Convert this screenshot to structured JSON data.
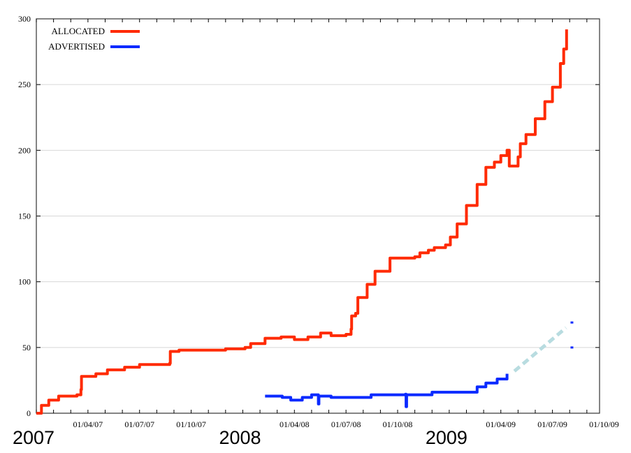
{
  "chart_data": {
    "type": "line",
    "title": "",
    "xlabel": "",
    "ylabel": "",
    "ylim": [
      0,
      300
    ],
    "xlim": [
      "2007-01-01",
      "2009-10-15"
    ],
    "grid": {
      "horizontal": true,
      "vertical": false
    },
    "legend_placement": "top-left",
    "y_ticks": [
      "0",
      "50",
      "100",
      "150",
      "200",
      "250",
      "300"
    ],
    "x_ticks": [
      {
        "date": "2007-04-01",
        "label": "01/04/07"
      },
      {
        "date": "2007-07-01",
        "label": "01/07/07"
      },
      {
        "date": "2007-10-01",
        "label": "01/10/07"
      },
      {
        "date": "2008-04-01",
        "label": "01/04/08"
      },
      {
        "date": "2008-07-01",
        "label": "01/07/08"
      },
      {
        "date": "2008-10-01",
        "label": "01/10/08"
      },
      {
        "date": "2009-04-01",
        "label": "01/04/09"
      },
      {
        "date": "2009-07-01",
        "label": "01/07/09"
      },
      {
        "date": "2009-10-01",
        "label": "01/10/09"
      }
    ],
    "year_labels": [
      {
        "date": "2007-01-01",
        "label": "2007"
      },
      {
        "date": "2008-01-01",
        "label": "2008"
      },
      {
        "date": "2009-01-01",
        "label": "2009"
      }
    ],
    "series": [
      {
        "name": "ALLOCATED",
        "color": "#ff2a00",
        "points": [
          [
            "2007-01-01",
            0
          ],
          [
            "2007-01-10",
            6
          ],
          [
            "2007-01-23",
            10
          ],
          [
            "2007-02-10",
            13
          ],
          [
            "2007-03-12",
            14
          ],
          [
            "2007-03-19",
            18
          ],
          [
            "2007-03-20",
            28
          ],
          [
            "2007-04-15",
            30
          ],
          [
            "2007-05-05",
            33
          ],
          [
            "2007-06-05",
            35
          ],
          [
            "2007-07-01",
            37
          ],
          [
            "2007-08-24",
            38
          ],
          [
            "2007-08-25",
            47
          ],
          [
            "2007-09-10",
            48
          ],
          [
            "2007-12-01",
            49
          ],
          [
            "2008-01-05",
            50
          ],
          [
            "2008-01-15",
            53
          ],
          [
            "2008-02-10",
            57
          ],
          [
            "2008-03-08",
            58
          ],
          [
            "2008-04-01",
            56
          ],
          [
            "2008-04-25",
            58
          ],
          [
            "2008-05-17",
            61
          ],
          [
            "2008-06-05",
            59
          ],
          [
            "2008-07-01",
            60
          ],
          [
            "2008-07-10",
            64
          ],
          [
            "2008-07-11",
            74
          ],
          [
            "2008-07-18",
            76
          ],
          [
            "2008-07-22",
            88
          ],
          [
            "2008-08-08",
            98
          ],
          [
            "2008-08-22",
            108
          ],
          [
            "2008-09-18",
            118
          ],
          [
            "2008-11-01",
            119
          ],
          [
            "2008-11-10",
            122
          ],
          [
            "2008-11-25",
            124
          ],
          [
            "2008-12-05",
            126
          ],
          [
            "2008-12-25",
            128
          ],
          [
            "2009-01-03",
            134
          ],
          [
            "2009-01-15",
            144
          ],
          [
            "2009-02-01",
            158
          ],
          [
            "2009-02-20",
            174
          ],
          [
            "2009-03-05",
            187
          ],
          [
            "2009-03-20",
            191
          ],
          [
            "2009-04-01",
            196
          ],
          [
            "2009-04-12",
            200
          ],
          [
            "2009-04-16",
            188
          ],
          [
            "2009-05-01",
            195
          ],
          [
            "2009-05-05",
            205
          ],
          [
            "2009-05-15",
            212
          ],
          [
            "2009-06-01",
            224
          ],
          [
            "2009-06-18",
            237
          ],
          [
            "2009-07-01",
            248
          ],
          [
            "2009-07-15",
            266
          ],
          [
            "2009-07-21",
            277
          ],
          [
            "2009-07-26",
            292
          ]
        ]
      },
      {
        "name": "ADVERTISED",
        "color": "#0a2aff",
        "points": [
          [
            "2008-02-10",
            13
          ],
          [
            "2008-03-10",
            12
          ],
          [
            "2008-03-25",
            10
          ],
          [
            "2008-04-15",
            12
          ],
          [
            "2008-05-01",
            14
          ],
          [
            "2008-05-12",
            14
          ],
          [
            "2008-05-13",
            7
          ],
          [
            "2008-05-14",
            13
          ],
          [
            "2008-06-05",
            12
          ],
          [
            "2008-07-15",
            12
          ],
          [
            "2008-08-15",
            14
          ],
          [
            "2008-10-15",
            14.5
          ],
          [
            "2008-10-16",
            5
          ],
          [
            "2008-10-17",
            14
          ],
          [
            "2008-12-01",
            16
          ],
          [
            "2009-01-25",
            16
          ],
          [
            "2009-02-20",
            20
          ],
          [
            "2009-03-05",
            23
          ],
          [
            "2009-03-25",
            26
          ],
          [
            "2009-04-12",
            30
          ]
        ]
      }
    ],
    "projection": {
      "color": "#b8dce0",
      "style": "dashed",
      "points": [
        [
          "2009-04-25",
          32
        ],
        [
          "2009-07-25",
          65
        ]
      ]
    },
    "isolated_points": [
      {
        "date": "2009-08-05",
        "value": 69,
        "color": "#0a2aff"
      },
      {
        "date": "2009-08-05",
        "value": 50,
        "color": "#0a2aff"
      }
    ]
  }
}
